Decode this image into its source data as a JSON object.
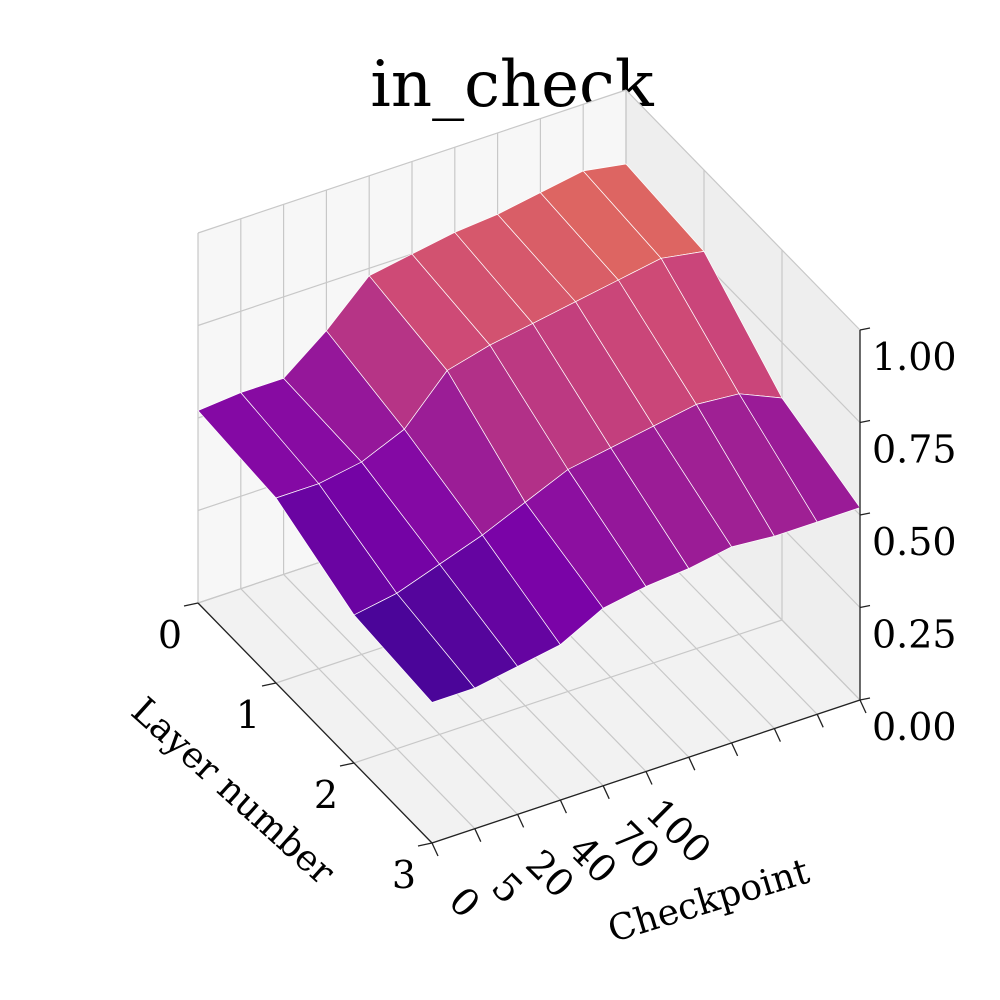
{
  "chart_data": {
    "type": "surface3d",
    "title": "in_check",
    "xlabel": "Checkpoint",
    "ylabel": "Layer number",
    "zlabel": "",
    "x_ticks": [
      "0",
      "5",
      "20",
      "40",
      "70",
      "100"
    ],
    "y_ticks": [
      "0",
      "1",
      "2",
      "3"
    ],
    "z_ticks": [
      "0.00",
      "0.25",
      "0.50",
      "0.75",
      "1.00"
    ],
    "zlim": [
      0,
      1.0
    ],
    "grid": true,
    "colormap": "plasma",
    "surface": {
      "checkpoint_index": [
        0,
        1,
        2,
        3,
        4,
        5,
        6,
        7,
        8,
        9,
        10
      ],
      "layer_index": [
        0,
        1,
        2,
        3
      ],
      "z": [
        [
          0.52,
          0.53,
          0.53,
          0.62,
          0.73,
          0.75,
          0.77,
          0.78,
          0.8,
          0.82,
          0.8
        ],
        [
          0.5,
          0.5,
          0.52,
          0.57,
          0.69,
          0.72,
          0.74,
          0.76,
          0.78,
          0.8,
          0.78
        ],
        [
          0.4,
          0.42,
          0.46,
          0.5,
          0.55,
          0.6,
          0.62,
          0.64,
          0.66,
          0.65,
          0.6
        ],
        [
          0.38,
          0.38,
          0.4,
          0.42,
          0.48,
          0.5,
          0.51,
          0.53,
          0.52,
          0.52,
          0.52
        ]
      ]
    }
  }
}
